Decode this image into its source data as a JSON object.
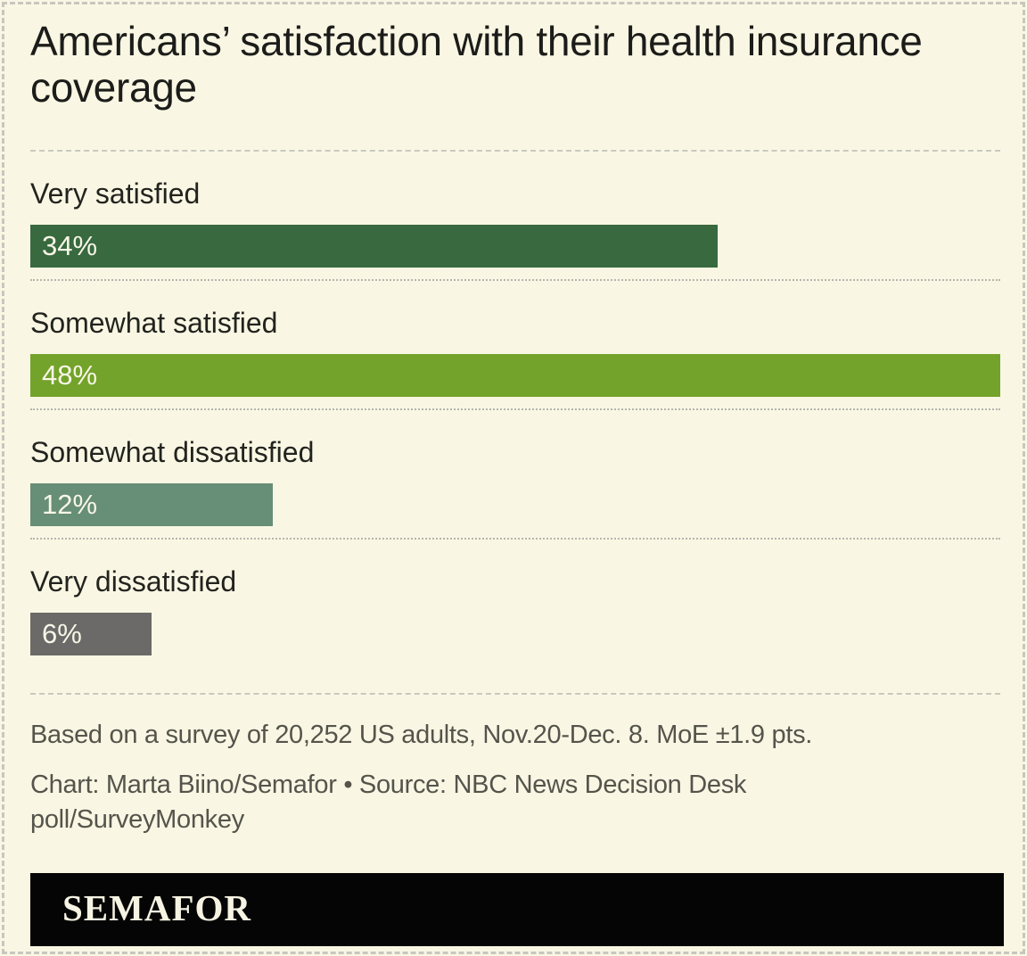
{
  "theme": {
    "background": "#F9F7E3",
    "border_color": "#C7C6BE",
    "sep_dashed_color": "#C9C8C0",
    "sep_dotted_color": "#B5B5AE",
    "title_color": "#1C1C1A",
    "label_color": "#23231F",
    "bar_text_color": "#F8F6E7",
    "footnote_color": "#55544C",
    "logo_bg": "#050505",
    "logo_text_color": "#F6F3E2"
  },
  "chart_data": {
    "type": "bar",
    "orientation": "horizontal",
    "title": "Americans’ satisfaction with their health insurance coverage",
    "categories": [
      "Very satisfied",
      "Somewhat satisfied",
      "Somewhat dissatisfied",
      "Very dissatisfied"
    ],
    "values": [
      34,
      48,
      12,
      6
    ],
    "value_labels": [
      "34%",
      "48%",
      "12%",
      "6%"
    ],
    "bar_colors": [
      "#38693F",
      "#73A32A",
      "#678E77",
      "#6B6A68"
    ],
    "xlim": [
      0,
      48
    ],
    "grid": false,
    "legend": false,
    "value_label_position": "inside-left"
  },
  "footer": {
    "note": "Based on a survey of 20,252 US adults, Nov.20-Dec. 8. MoE ±1.9 pts.",
    "credit": "Chart: Marta Biino/Semafor • Source: NBC News Decision Desk poll/SurveyMonkey",
    "logo_text": "SEMAFOR"
  }
}
